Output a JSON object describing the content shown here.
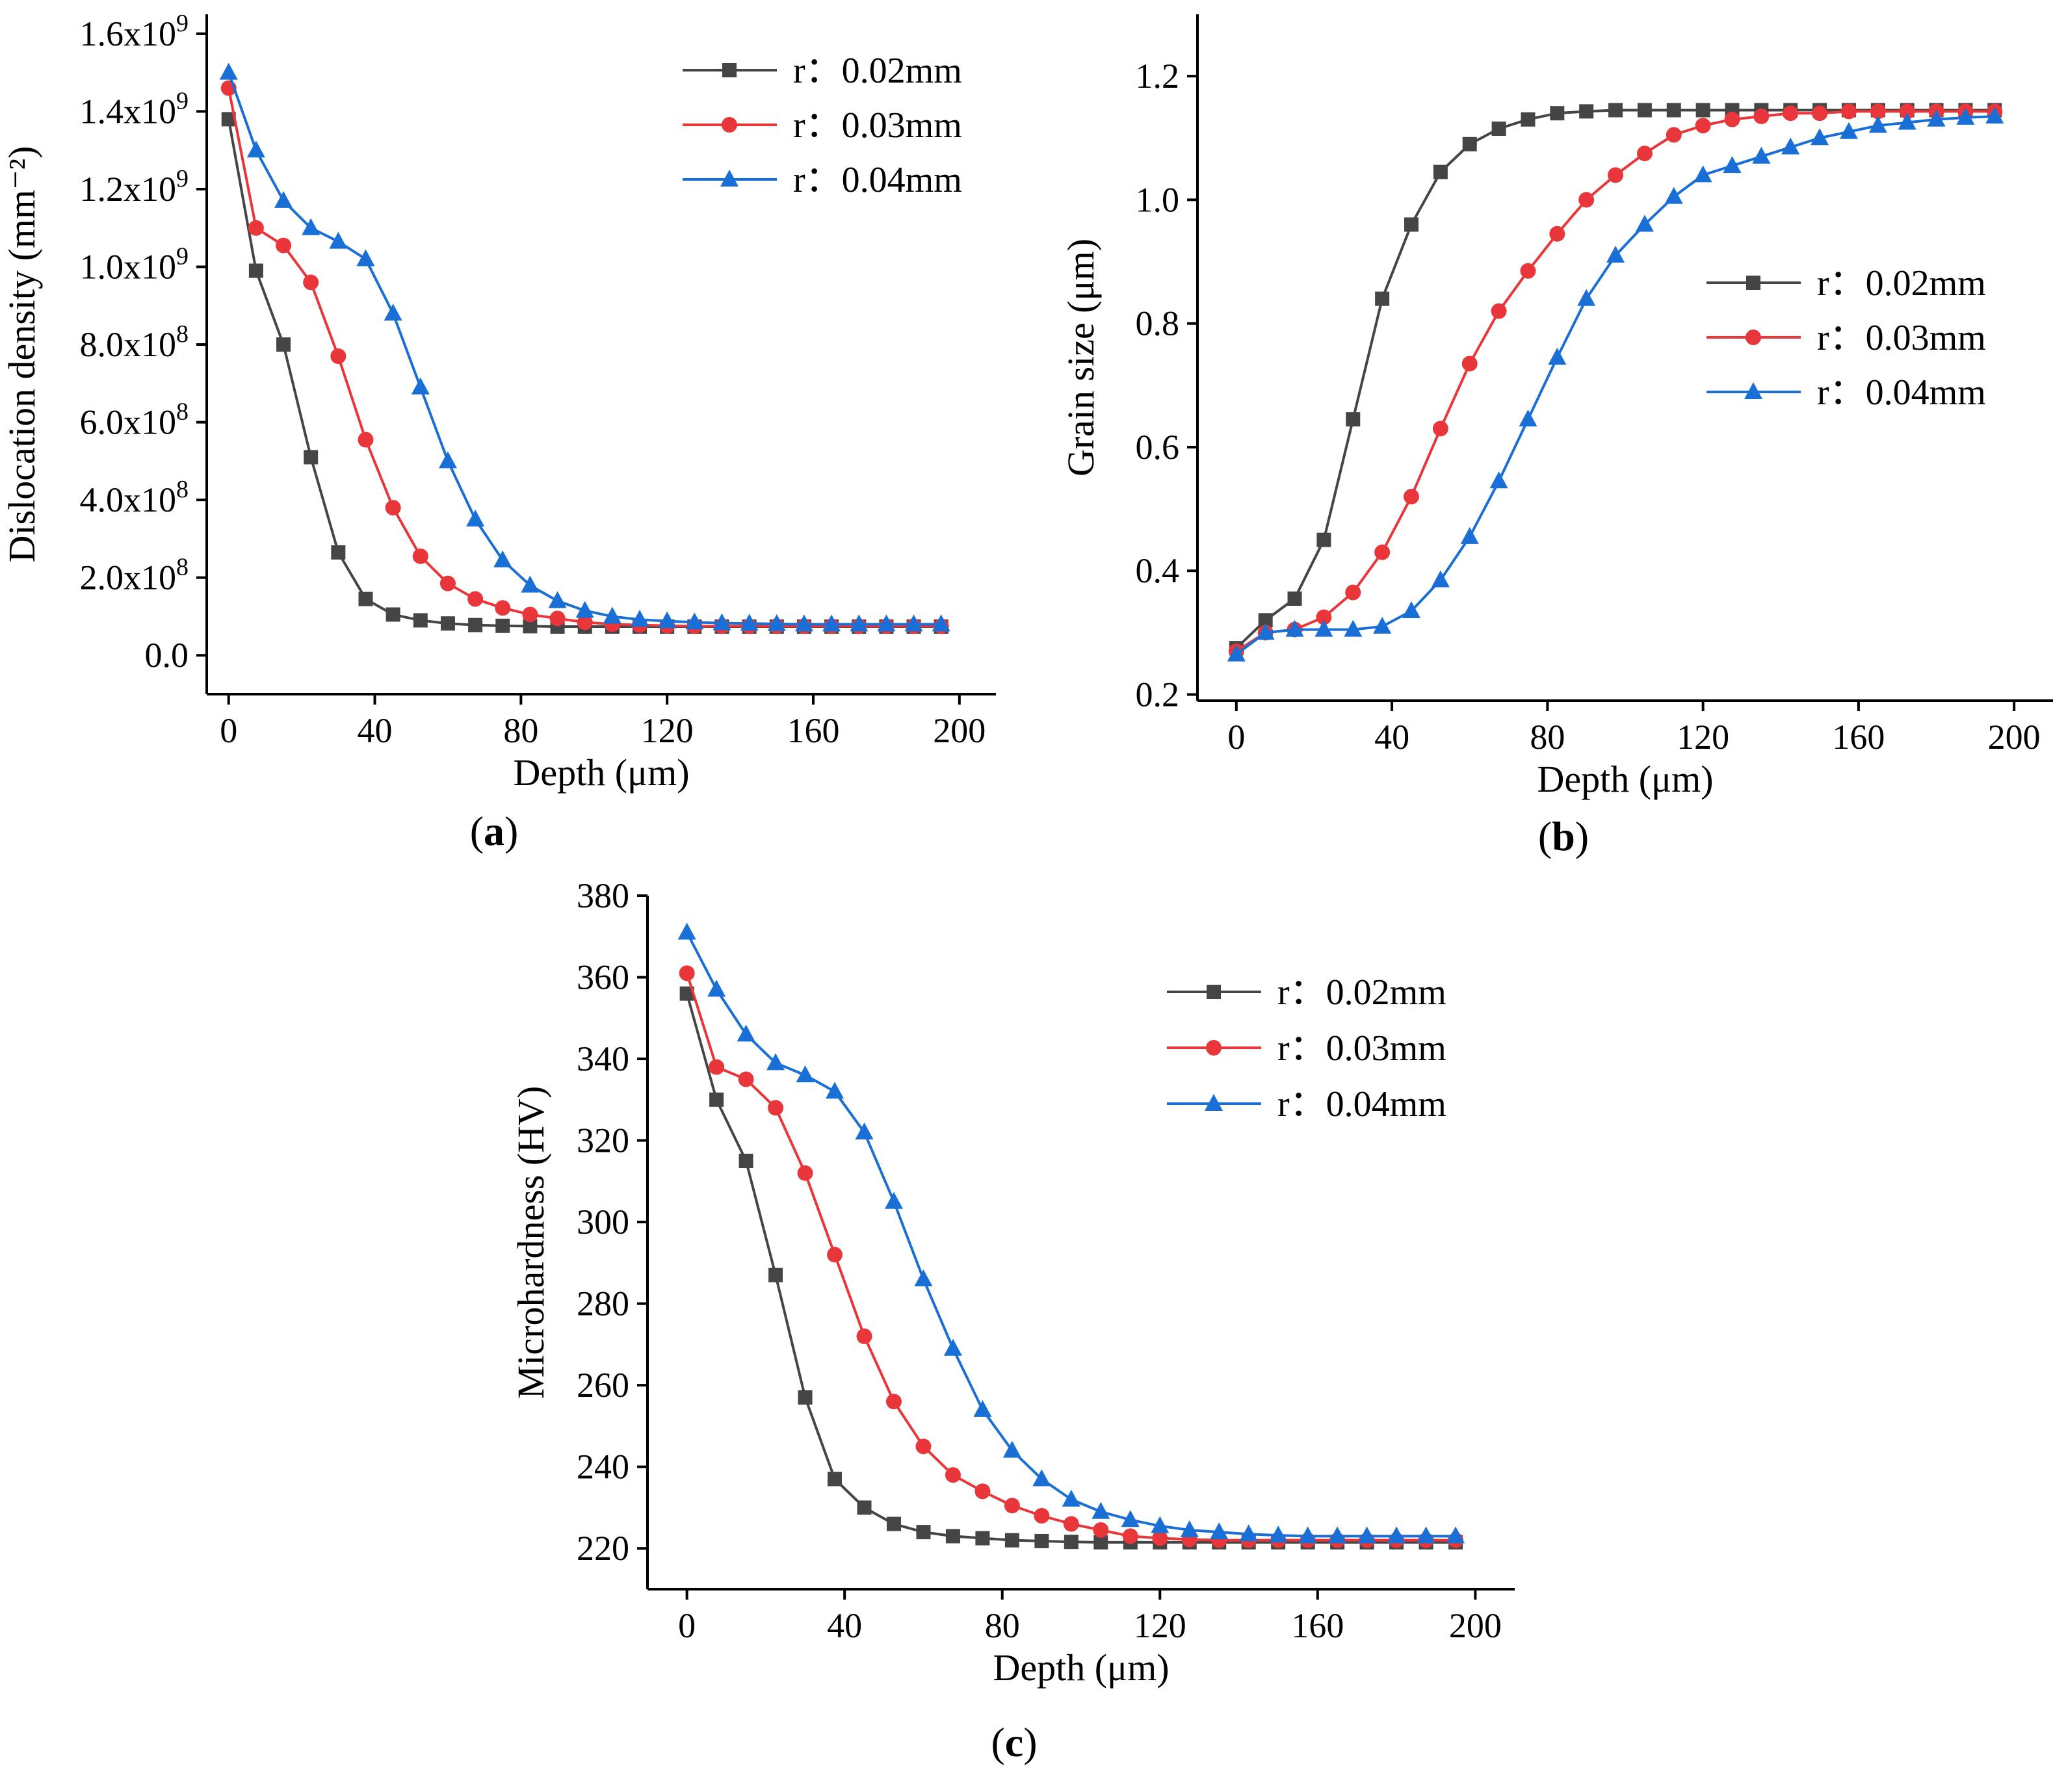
{
  "figure": {
    "panels": [
      "(a)",
      "(b)",
      "(c)"
    ],
    "series_colors": {
      "r002": "#454545",
      "r003": "#e8363b",
      "r004": "#1a6fd6"
    }
  },
  "chart_data": [
    {
      "id": "a",
      "type": "line",
      "panel_label": "(a)",
      "xlabel": "Depth (μm)",
      "ylabel": "Dislocation density (mm⁻²)",
      "xlim": [
        -6,
        210
      ],
      "ylim": [
        -100000000.0,
        1650000000.0
      ],
      "xticks": [
        0,
        40,
        80,
        120,
        160,
        200
      ],
      "xtick_labels": [
        "0",
        "40",
        "80",
        "120",
        "160",
        "200"
      ],
      "yticks": [
        0,
        200000000.0,
        400000000.0,
        600000000.0,
        800000000.0,
        1000000000.0,
        1200000000.0,
        1400000000.0,
        1600000000.0
      ],
      "ytick_labels": [
        "0.0",
        "2.0x10⁸",
        "4.0x10⁸",
        "6.0x10⁸",
        "8.0x10⁸",
        "1.0x10⁹",
        "1.2x10⁹",
        "1.4x10⁹",
        "1.6x10⁹"
      ],
      "legend_position": "top-right",
      "x": [
        0,
        7.5,
        15,
        22.5,
        30,
        37.5,
        45,
        52.5,
        60,
        67.5,
        75,
        82.5,
        90,
        97.5,
        105,
        112.5,
        120,
        127.5,
        135,
        142.5,
        150,
        157.5,
        165,
        172.5,
        180,
        187.5,
        195
      ],
      "series": [
        {
          "name": "r：0.02mm",
          "marker": "square",
          "color": "#454545",
          "values": [
            1380000000.0,
            990000000.0,
            800000000.0,
            510000000.0,
            265000000.0,
            145000000.0,
            105000000.0,
            90000000.0,
            82000000.0,
            78000000.0,
            76000000.0,
            75000000.0,
            74000000.0,
            74000000.0,
            74000000.0,
            74000000.0,
            74000000.0,
            74000000.0,
            74000000.0,
            74000000.0,
            74000000.0,
            74000000.0,
            74000000.0,
            74000000.0,
            74000000.0,
            74000000.0,
            74000000.0
          ]
        },
        {
          "name": "r：0.03mm",
          "marker": "circle",
          "color": "#e8363b",
          "values": [
            1460000000.0,
            1100000000.0,
            1055000000.0,
            960000000.0,
            770000000.0,
            555000000.0,
            380000000.0,
            255000000.0,
            185000000.0,
            145000000.0,
            122000000.0,
            105000000.0,
            95000000.0,
            85000000.0,
            80000000.0,
            78000000.0,
            76000000.0,
            75000000.0,
            75000000.0,
            75000000.0,
            75000000.0,
            75000000.0,
            75000000.0,
            75000000.0,
            75000000.0,
            75000000.0,
            75000000.0
          ]
        },
        {
          "name": "r：0.04mm",
          "marker": "triangle",
          "color": "#1a6fd6",
          "values": [
            1500000000.0,
            1300000000.0,
            1170000000.0,
            1100000000.0,
            1065000000.0,
            1020000000.0,
            880000000.0,
            690000000.0,
            500000000.0,
            350000000.0,
            245000000.0,
            180000000.0,
            140000000.0,
            115000000.0,
            100000000.0,
            92000000.0,
            88000000.0,
            85000000.0,
            83000000.0,
            82000000.0,
            81000000.0,
            80000000.0,
            80000000.0,
            80000000.0,
            80000000.0,
            80000000.0,
            80000000.0
          ]
        }
      ]
    },
    {
      "id": "b",
      "type": "line",
      "panel_label": "(b)",
      "xlabel": "Depth (μm)",
      "ylabel": "Grain size (μm)",
      "xlim": [
        -10,
        210
      ],
      "ylim": [
        0.19,
        1.3
      ],
      "xticks": [
        0,
        40,
        80,
        120,
        160,
        200
      ],
      "xtick_labels": [
        "0",
        "40",
        "80",
        "120",
        "160",
        "200"
      ],
      "yticks": [
        0.2,
        0.4,
        0.6,
        0.8,
        1.0,
        1.2
      ],
      "ytick_labels": [
        "0.2",
        "0.4",
        "0.6",
        "0.8",
        "1.0",
        "1.2"
      ],
      "legend_position": "right",
      "x": [
        0,
        7.5,
        15,
        22.5,
        30,
        37.5,
        45,
        52.5,
        60,
        67.5,
        75,
        82.5,
        90,
        97.5,
        105,
        112.5,
        120,
        127.5,
        135,
        142.5,
        150,
        157.5,
        165,
        172.5,
        180,
        187.5,
        195
      ],
      "series": [
        {
          "name": "r：0.02mm",
          "marker": "square",
          "color": "#454545",
          "values": [
            0.275,
            0.32,
            0.355,
            0.45,
            0.645,
            0.84,
            0.96,
            1.045,
            1.09,
            1.115,
            1.13,
            1.14,
            1.143,
            1.145,
            1.145,
            1.145,
            1.145,
            1.145,
            1.145,
            1.145,
            1.145,
            1.145,
            1.145,
            1.145,
            1.145,
            1.145,
            1.145
          ]
        },
        {
          "name": "r：0.03mm",
          "marker": "circle",
          "color": "#e8363b",
          "values": [
            0.27,
            0.3,
            0.305,
            0.325,
            0.365,
            0.43,
            0.52,
            0.63,
            0.735,
            0.82,
            0.885,
            0.945,
            1.0,
            1.04,
            1.075,
            1.105,
            1.12,
            1.13,
            1.135,
            1.14,
            1.14,
            1.143,
            1.143,
            1.143,
            1.143,
            1.143,
            1.143
          ]
        },
        {
          "name": "r：0.04mm",
          "marker": "triangle",
          "color": "#1a6fd6",
          "values": [
            0.265,
            0.3,
            0.305,
            0.305,
            0.305,
            0.31,
            0.335,
            0.385,
            0.455,
            0.545,
            0.645,
            0.745,
            0.84,
            0.91,
            0.96,
            1.005,
            1.04,
            1.055,
            1.07,
            1.085,
            1.1,
            1.11,
            1.12,
            1.125,
            1.13,
            1.133,
            1.135
          ]
        }
      ]
    },
    {
      "id": "c",
      "type": "line",
      "panel_label": "(c)",
      "xlabel": "Depth (μm)",
      "ylabel": "Microhardness (HV)",
      "xlim": [
        -10,
        210
      ],
      "ylim": [
        210,
        380
      ],
      "xticks": [
        0,
        40,
        80,
        120,
        160,
        200
      ],
      "xtick_labels": [
        "0",
        "40",
        "80",
        "120",
        "160",
        "200"
      ],
      "yticks": [
        220,
        240,
        260,
        280,
        300,
        320,
        340,
        360,
        380
      ],
      "ytick_labels": [
        "220",
        "240",
        "260",
        "280",
        "300",
        "320",
        "340",
        "360",
        "380"
      ],
      "legend_position": "upper-center-right",
      "x": [
        0,
        7.5,
        15,
        22.5,
        30,
        37.5,
        45,
        52.5,
        60,
        67.5,
        75,
        82.5,
        90,
        97.5,
        105,
        112.5,
        120,
        127.5,
        135,
        142.5,
        150,
        157.5,
        165,
        172.5,
        180,
        187.5,
        195
      ],
      "series": [
        {
          "name": "r：0.02mm",
          "marker": "square",
          "color": "#454545",
          "values": [
            356,
            330,
            315,
            287,
            257,
            237,
            230,
            226,
            224,
            223,
            222.5,
            222,
            221.8,
            221.6,
            221.5,
            221.5,
            221.5,
            221.5,
            221.5,
            221.5,
            221.5,
            221.5,
            221.5,
            221.5,
            221.5,
            221.5,
            221.5
          ]
        },
        {
          "name": "r：0.03mm",
          "marker": "circle",
          "color": "#e8363b",
          "values": [
            361,
            338,
            335,
            328,
            312,
            292,
            272,
            256,
            245,
            238,
            234,
            230.5,
            228,
            226,
            224.5,
            223,
            222.5,
            222.2,
            222,
            222,
            222,
            222,
            222,
            222,
            222,
            222,
            222
          ]
        },
        {
          "name": "r：0.04mm",
          "marker": "triangle",
          "color": "#1a6fd6",
          "values": [
            371,
            357,
            346,
            339,
            336,
            332,
            322,
            305,
            286,
            269,
            254,
            244,
            237,
            232,
            229,
            227,
            225.5,
            224.5,
            224,
            223.5,
            223.2,
            223,
            223,
            223,
            223,
            223,
            223
          ]
        }
      ]
    }
  ]
}
